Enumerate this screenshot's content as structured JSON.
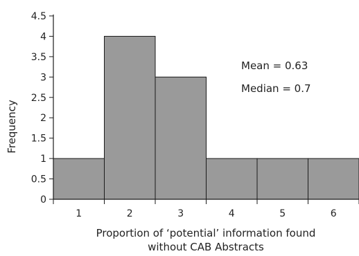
{
  "chart_data": {
    "type": "bar",
    "categories": [
      "1",
      "2",
      "3",
      "4",
      "5",
      "6"
    ],
    "values": [
      1,
      4,
      3,
      1,
      1,
      1
    ],
    "ylim": [
      0,
      4.5
    ],
    "yticks": [
      "0",
      "0.5",
      "1",
      "1.5",
      "2",
      "2.5",
      "3",
      "3.5",
      "4",
      "4.5"
    ],
    "xlabel_line1": "Proportion of ‘potential’ information found",
    "xlabel_line2": "without CAB Abstracts",
    "ylabel": "Frequency",
    "annotations": [
      "Mean = 0.63",
      "Median = 0.7"
    ],
    "bar_color": "#9a9a9a",
    "bar_edge_color": "#1a1a1a",
    "grid": false,
    "legend": "none"
  }
}
